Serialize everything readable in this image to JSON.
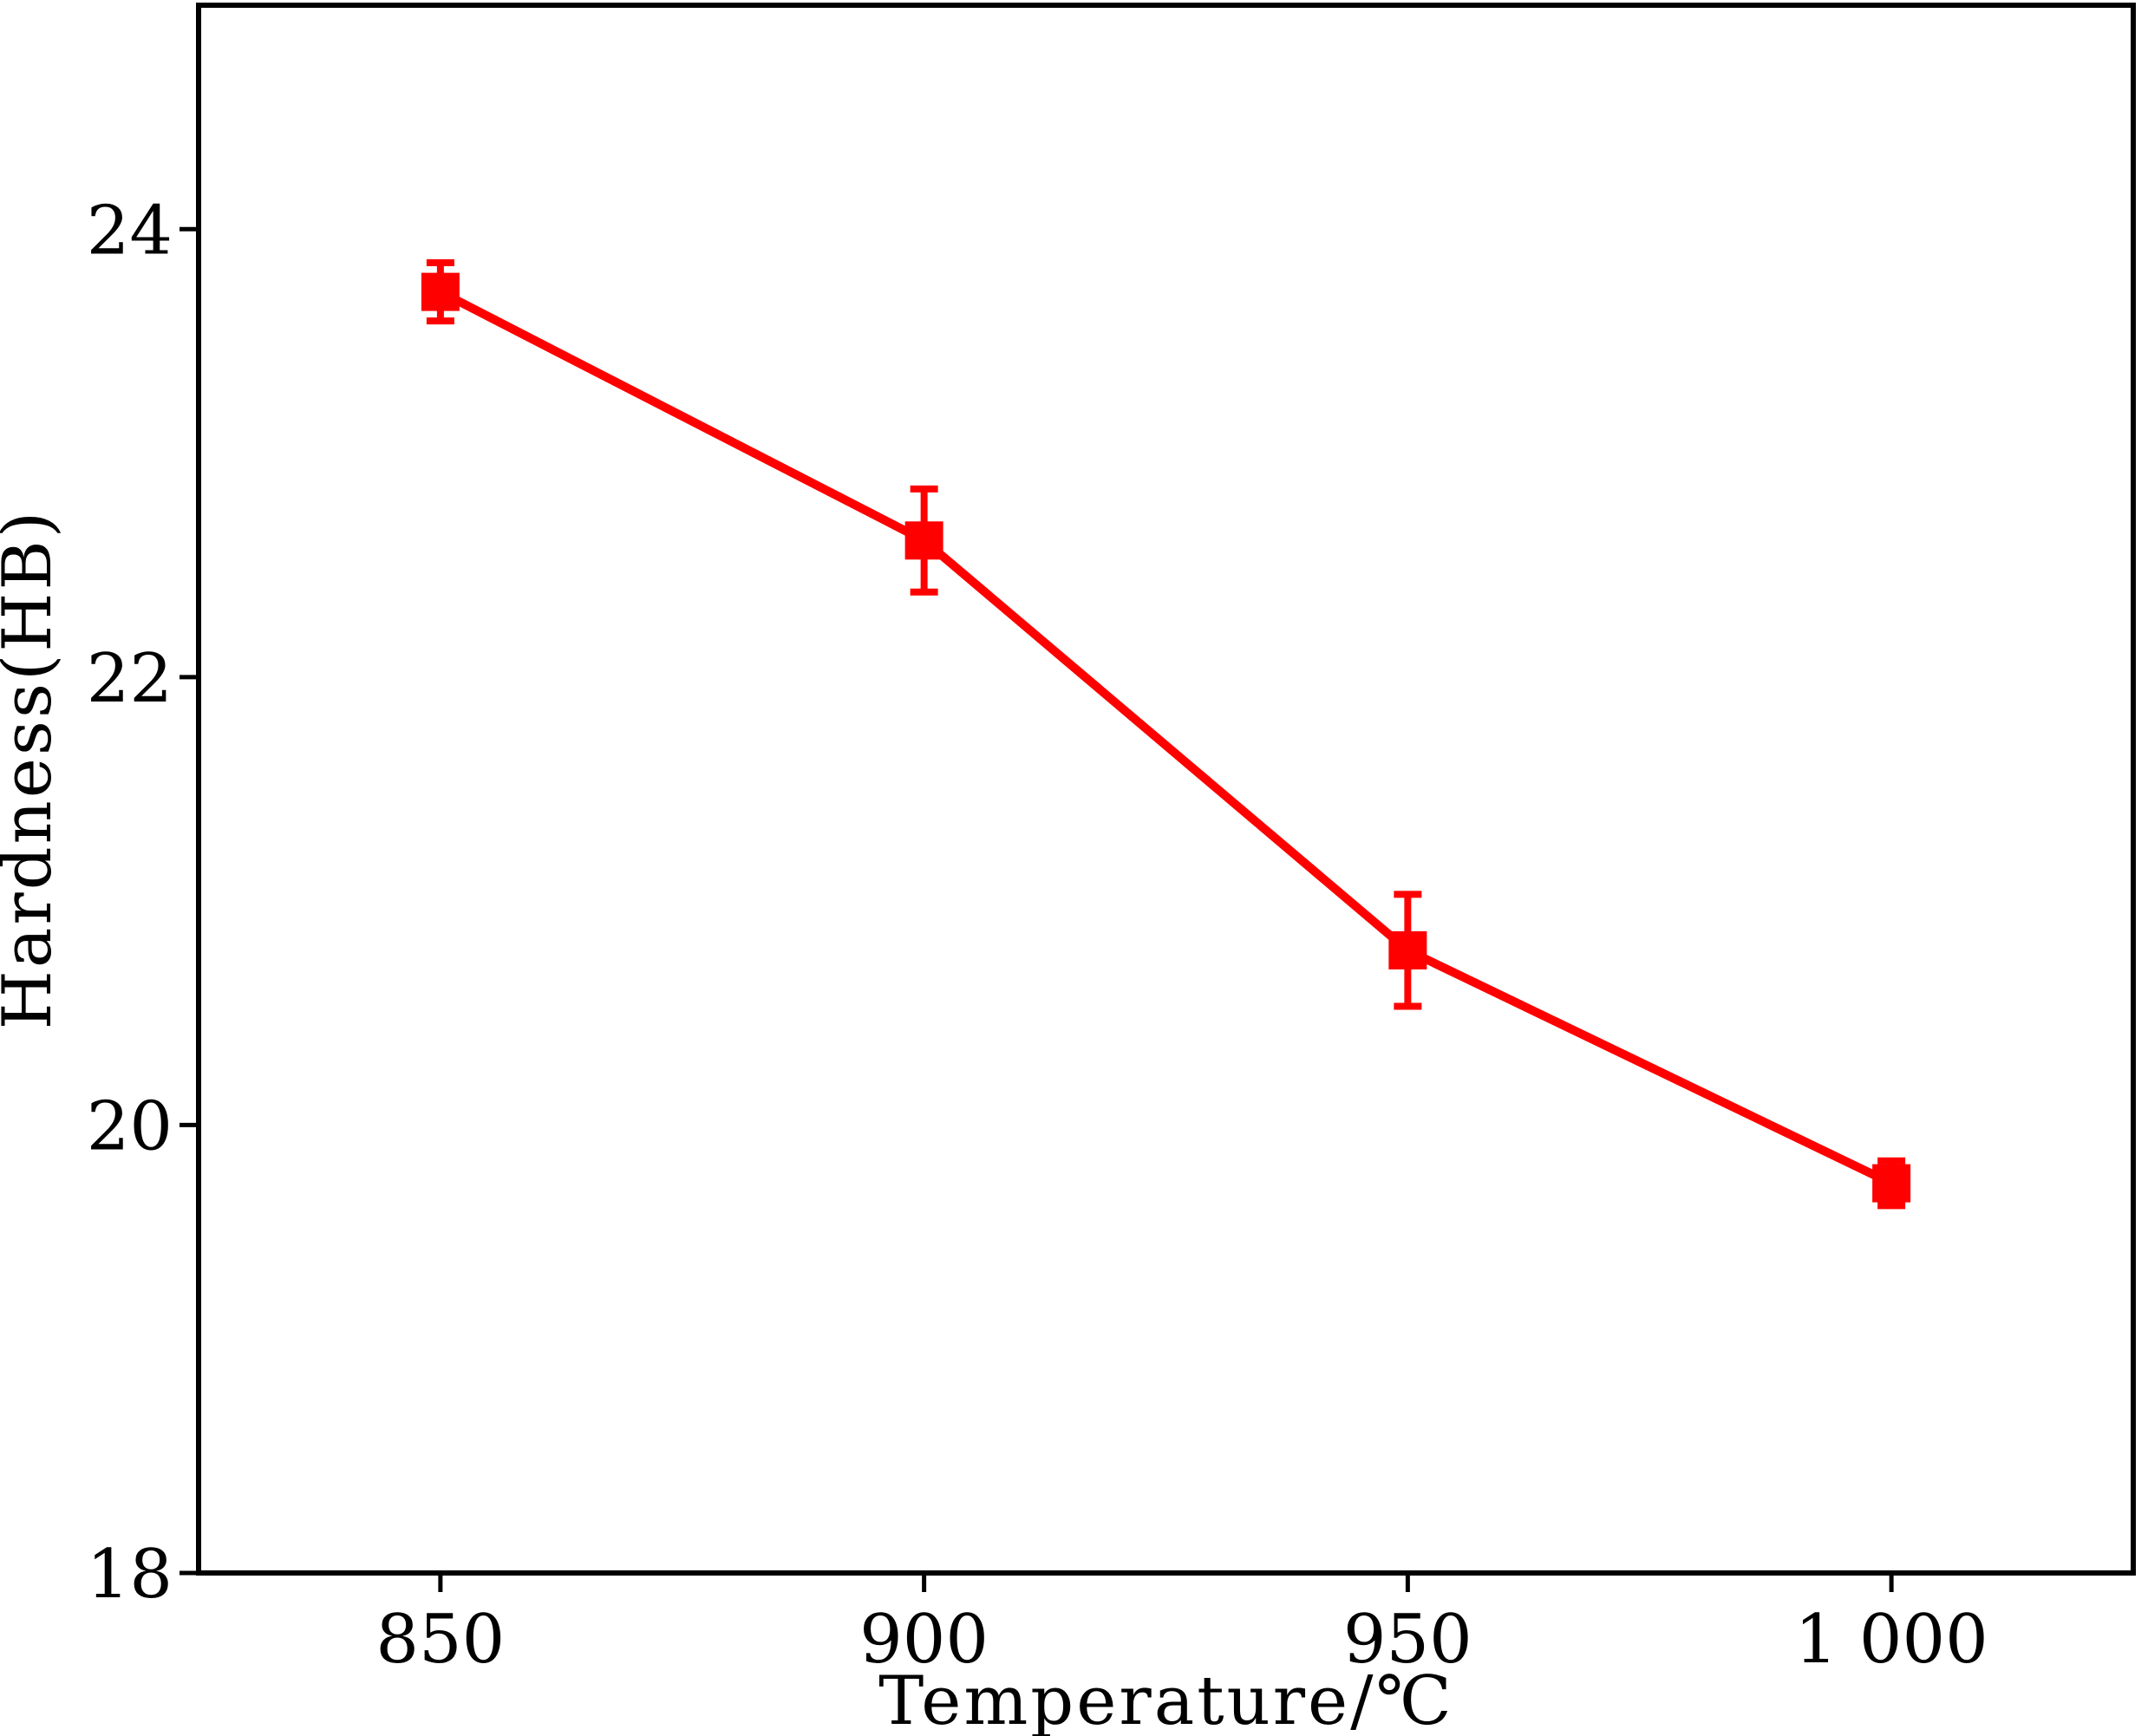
{
  "chart_data": {
    "type": "line",
    "xlabel": "Temperature/℃",
    "ylabel": "Hardness(HB)",
    "xlim": [
      825,
      1025
    ],
    "ylim": [
      18,
      25
    ],
    "x_ticks": [
      850,
      900,
      950,
      1000
    ],
    "x_tick_labels": [
      "850",
      "900",
      "950",
      "1 000"
    ],
    "y_ticks": [
      18,
      20,
      22,
      24
    ],
    "y_tick_labels": [
      "18",
      "20",
      "22",
      "24"
    ],
    "grid": false,
    "series": [
      {
        "x": [
          850,
          900,
          950,
          1000
        ],
        "y": [
          23.72,
          22.61,
          20.78,
          19.74
        ],
        "error": [
          0.13,
          0.23,
          0.25,
          0.1
        ],
        "color": "#ff0000",
        "marker": "square"
      }
    ]
  }
}
